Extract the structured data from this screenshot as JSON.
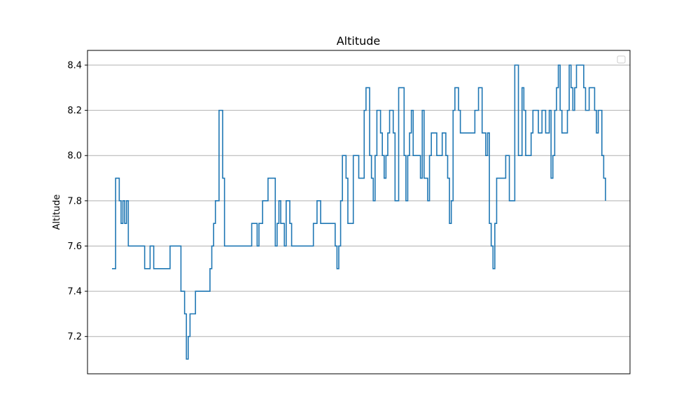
{
  "chart_data": {
    "type": "line",
    "title": "Altitude",
    "xlabel": "",
    "ylabel": "Altitude",
    "ylim": [
      7.035,
      8.465
    ],
    "yticks": [
      7.2,
      7.4,
      7.6,
      7.8,
      8.0,
      8.2,
      8.4
    ],
    "ytick_labels": [
      "7.2",
      "7.4",
      "7.6",
      "7.8",
      "8.0",
      "8.2",
      "8.4"
    ],
    "grid": "horizontal",
    "legend": "top-right (empty)",
    "line_color": "#1f77b4",
    "grid_color": "#b0b0b0",
    "series": [
      {
        "style": "step",
        "values": [
          7.5,
          7.5,
          7.9,
          7.9,
          7.8,
          7.7,
          7.8,
          7.7,
          7.8,
          7.6,
          7.6,
          7.6,
          7.6,
          7.6,
          7.6,
          7.6,
          7.6,
          7.6,
          7.5,
          7.5,
          7.5,
          7.6,
          7.6,
          7.5,
          7.5,
          7.5,
          7.5,
          7.5,
          7.5,
          7.5,
          7.5,
          7.5,
          7.6,
          7.6,
          7.6,
          7.6,
          7.6,
          7.6,
          7.4,
          7.4,
          7.3,
          7.1,
          7.2,
          7.3,
          7.3,
          7.3,
          7.4,
          7.4,
          7.4,
          7.4,
          7.4,
          7.4,
          7.4,
          7.4,
          7.5,
          7.6,
          7.7,
          7.8,
          7.8,
          8.2,
          8.2,
          7.9,
          7.6,
          7.6,
          7.6,
          7.6,
          7.6,
          7.6,
          7.6,
          7.6,
          7.6,
          7.6,
          7.6,
          7.6,
          7.6,
          7.6,
          7.6,
          7.7,
          7.7,
          7.7,
          7.6,
          7.7,
          7.7,
          7.8,
          7.8,
          7.8,
          7.9,
          7.9,
          7.9,
          7.9,
          7.6,
          7.7,
          7.8,
          7.7,
          7.7,
          7.6,
          7.8,
          7.8,
          7.7,
          7.6,
          7.6,
          7.6,
          7.6,
          7.6,
          7.6,
          7.6,
          7.6,
          7.6,
          7.6,
          7.6,
          7.6,
          7.7,
          7.7,
          7.8,
          7.8,
          7.7,
          7.7,
          7.7,
          7.7,
          7.7,
          7.7,
          7.7,
          7.7,
          7.6,
          7.5,
          7.6,
          7.8,
          8.0,
          8.0,
          7.9,
          7.7,
          7.7,
          7.7,
          8.0,
          8.0,
          8.0,
          7.9,
          7.9,
          7.9,
          8.2,
          8.3,
          8.3,
          8.0,
          7.9,
          7.8,
          8.0,
          8.2,
          8.2,
          8.1,
          8.0,
          7.9,
          8.0,
          8.1,
          8.2,
          8.2,
          8.1,
          7.8,
          7.8,
          8.3,
          8.3,
          8.3,
          8.0,
          7.8,
          8.0,
          8.1,
          8.2,
          8.0,
          8.0,
          8.0,
          8.0,
          7.9,
          8.2,
          7.9,
          7.9,
          7.8,
          8.0,
          8.1,
          8.1,
          8.1,
          8.0,
          8.0,
          8.0,
          8.1,
          8.1,
          8.0,
          7.9,
          7.7,
          7.8,
          8.2,
          8.3,
          8.3,
          8.2,
          8.1,
          8.1,
          8.1,
          8.1,
          8.1,
          8.1,
          8.1,
          8.1,
          8.2,
          8.2,
          8.3,
          8.3,
          8.1,
          8.1,
          8.0,
          8.1,
          7.7,
          7.6,
          7.5,
          7.7,
          7.9,
          7.9,
          7.9,
          7.9,
          7.9,
          8.0,
          8.0,
          7.8,
          7.8,
          7.8,
          8.4,
          8.4,
          8.0,
          8.0,
          8.3,
          8.2,
          8.0,
          8.0,
          8.0,
          8.1,
          8.2,
          8.2,
          8.2,
          8.1,
          8.1,
          8.2,
          8.2,
          8.1,
          8.1,
          8.2,
          7.9,
          8.0,
          8.2,
          8.3,
          8.4,
          8.2,
          8.1,
          8.1,
          8.1,
          8.2,
          8.4,
          8.3,
          8.2,
          8.3,
          8.4,
          8.4,
          8.4,
          8.4,
          8.3,
          8.2,
          8.2,
          8.3,
          8.3,
          8.3,
          8.2,
          8.1,
          8.2,
          8.2,
          8.0,
          7.9,
          7.8
        ]
      }
    ]
  }
}
